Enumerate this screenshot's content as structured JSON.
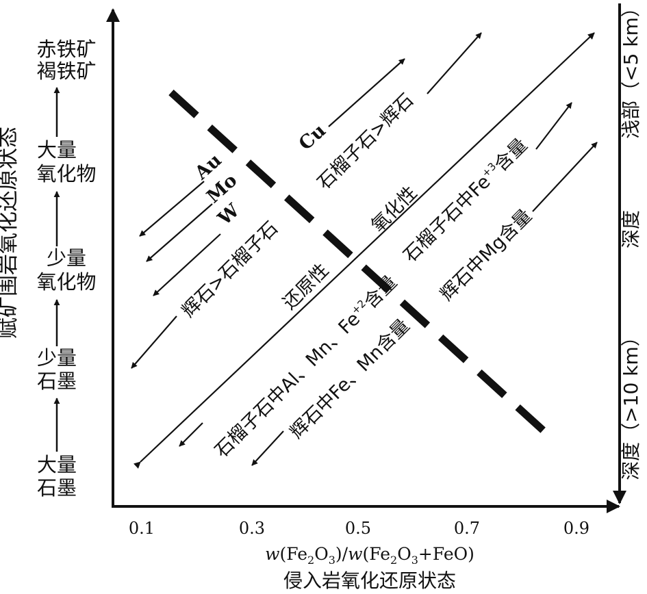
{
  "colors": {
    "ink": "#111111",
    "background": "#ffffff"
  },
  "x_axis": {
    "ticks": [
      "0.1",
      "0.3",
      "0.5",
      "0.7",
      "0.9"
    ],
    "label_formula_parts": [
      "w",
      "(Fe",
      "2",
      "O",
      "3",
      ")/",
      "w",
      "(Fe",
      "2",
      "O",
      "3",
      "+FeO)"
    ],
    "label_text": "w(Fe2O3)/w(Fe2O3+FeO)",
    "title": "侵入岩氧化还原状态"
  },
  "y_axis": {
    "title": "赋矿围岩氧化还原状态",
    "levels": [
      [
        "大量",
        "石墨"
      ],
      [
        "少量",
        "石墨"
      ],
      [
        "少量",
        "氧化物"
      ],
      [
        "大量",
        "氧化物"
      ],
      [
        "赤铁矿",
        "褐铁矿"
      ]
    ]
  },
  "depth_axis": {
    "shallow": "浅部（<5 km）",
    "middle": "深度",
    "deep": "深度（>10 km）"
  },
  "diagram_labels": {
    "metals": [
      "Au",
      "Mo",
      "W",
      "Cu"
    ],
    "pyroxene_garnet_left": "辉石>石榴子石",
    "garnet_pyroxene_right": "石榴子石>辉石",
    "reducing": "还原性",
    "oxidizing": "氧化性",
    "garnet_al_mn_fe2_main": "石榴子石中Al、Mn、Fe",
    "garnet_al_mn_fe2_sup": "+2",
    "garnet_al_mn_fe2_tail": "含量",
    "garnet_fe3_main": "石榴子石中Fe",
    "garnet_fe3_sup": "+3",
    "garnet_fe3_tail": "含量",
    "pyroxene_fe_mn": "辉石中Fe、Mn含量",
    "pyroxene_mg": "辉石中Mg含量"
  }
}
